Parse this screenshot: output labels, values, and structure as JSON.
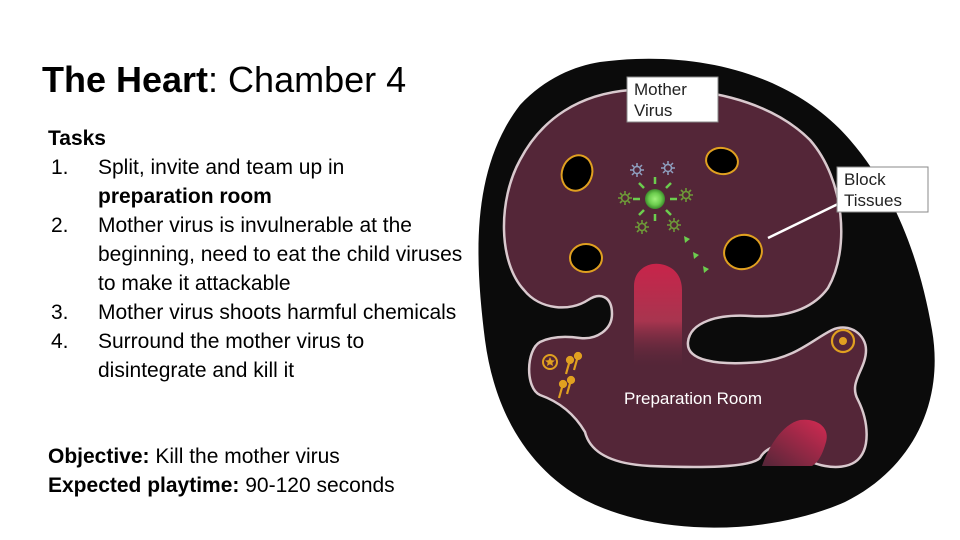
{
  "title": {
    "bold": "The Heart",
    "rest": ": Chamber 4"
  },
  "tasks": {
    "heading": "Tasks",
    "items": [
      {
        "num": "1.",
        "text": "Split, invite and team up in",
        "bold": "preparation room",
        "after": ""
      },
      {
        "num": "2.",
        "text": "Mother virus is invulnerable at the beginning, need to eat the child viruses to make it attackable",
        "bold": "",
        "after": ""
      },
      {
        "num": "3.",
        "text": "Mother virus shoots harmful chemicals",
        "bold": "",
        "after": ""
      },
      {
        "num": "4.",
        "text": "Surround the mother virus to disintegrate and kill it",
        "bold": "",
        "after": ""
      }
    ]
  },
  "objective": {
    "label": "Objective:",
    "value": " Kill the mother virus"
  },
  "playtime": {
    "label": "Expected playtime:",
    "value": " 90-120 seconds"
  },
  "map": {
    "callout_mother_line1": "Mother",
    "callout_mother_line2": "Virus",
    "callout_block_line1": "Block",
    "callout_block_line2": "Tissues",
    "room_label": "Preparation Room"
  },
  "colors": {
    "outer": "#0b0b0b",
    "chamber": "#542638",
    "outline": "#d9c9ce",
    "tissue_ring": "#e0a020",
    "mother_virus": "#7ad45a",
    "child_virus": "#5e8a3a",
    "vessel": "#c8244a"
  }
}
